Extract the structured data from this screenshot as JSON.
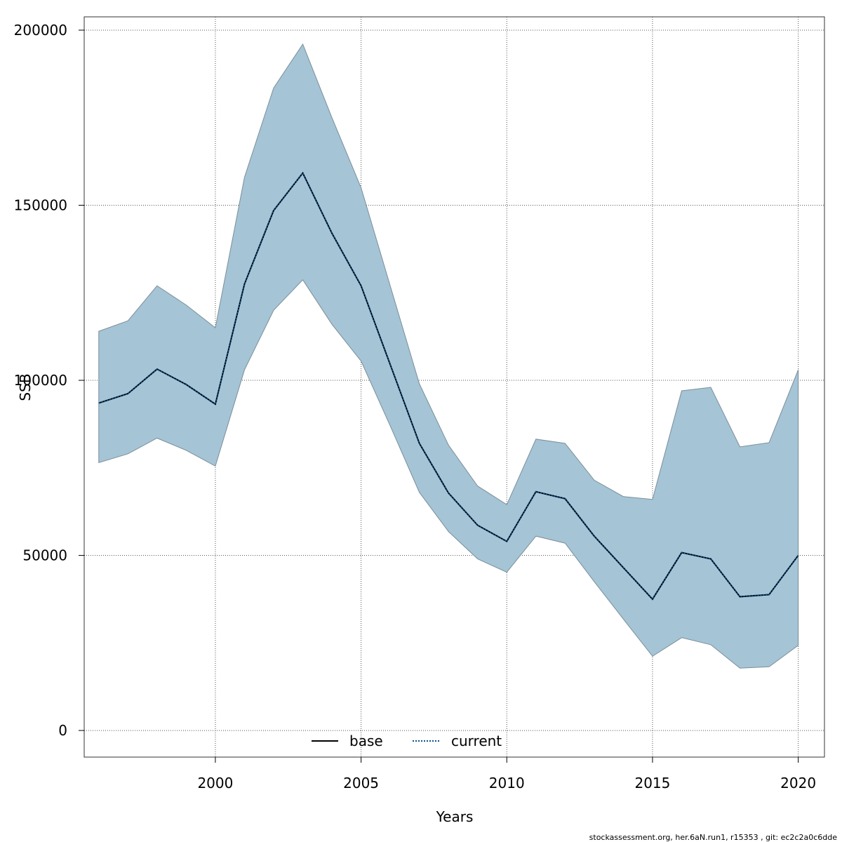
{
  "chart_data": {
    "type": "area",
    "title": "",
    "xlabel": "Years",
    "ylabel": "SSB",
    "xlim": [
      1995.5,
      2020.9
    ],
    "ylim": [
      -7600,
      203800
    ],
    "x_ticks": [
      2000,
      2005,
      2010,
      2015,
      2020
    ],
    "y_ticks": [
      0,
      50000,
      100000,
      150000,
      200000
    ],
    "grid": true,
    "x": [
      1996,
      1997,
      1998,
      1999,
      2000,
      2001,
      2002,
      2003,
      2004,
      2005,
      2006,
      2007,
      2008,
      2009,
      2010,
      2011,
      2012,
      2013,
      2014,
      2015,
      2016,
      2017,
      2018,
      2019,
      2020
    ],
    "series": [
      {
        "name": "base",
        "style": "solid",
        "color": "#000000",
        "values": [
          93500,
          96200,
          103200,
          98800,
          93200,
          127500,
          148500,
          159200,
          142000,
          127000,
          104500,
          82000,
          67800,
          58600,
          54000,
          68200,
          66200,
          55500,
          46500,
          37500,
          50800,
          49000,
          38200,
          38800,
          50000
        ]
      },
      {
        "name": "current",
        "style": "dotted",
        "color": "#0b4f8a",
        "values": [
          93500,
          96200,
          103200,
          98800,
          93200,
          127500,
          148500,
          159200,
          142000,
          127000,
          104500,
          82000,
          67800,
          58600,
          54000,
          68200,
          66200,
          55500,
          46500,
          37500,
          50800,
          49000,
          38200,
          38800,
          50000
        ]
      }
    ],
    "band": {
      "name": "confidence interval",
      "color": "#a5c4d5",
      "edge_color": "#7a8f9a",
      "upper": [
        114000,
        117000,
        127000,
        121500,
        115000,
        158000,
        183500,
        196000,
        175000,
        155000,
        127000,
        99000,
        81500,
        69800,
        64500,
        83200,
        82000,
        71500,
        66800,
        66000,
        97000,
        98000,
        81000,
        82200,
        103000
      ],
      "lower": [
        76500,
        79000,
        83500,
        80000,
        75500,
        103000,
        120000,
        128700,
        116000,
        105500,
        87000,
        68000,
        56800,
        49000,
        45200,
        55500,
        53500,
        42500,
        31800,
        21200,
        26500,
        24500,
        17800,
        18200,
        24300
      ]
    },
    "legend": {
      "placement": "bottom-center",
      "entries": [
        "base",
        "current"
      ]
    },
    "footer_text": "stockassessment.org, her.6aN.run1, r15353 , git: ec2c2a0c6dde"
  }
}
